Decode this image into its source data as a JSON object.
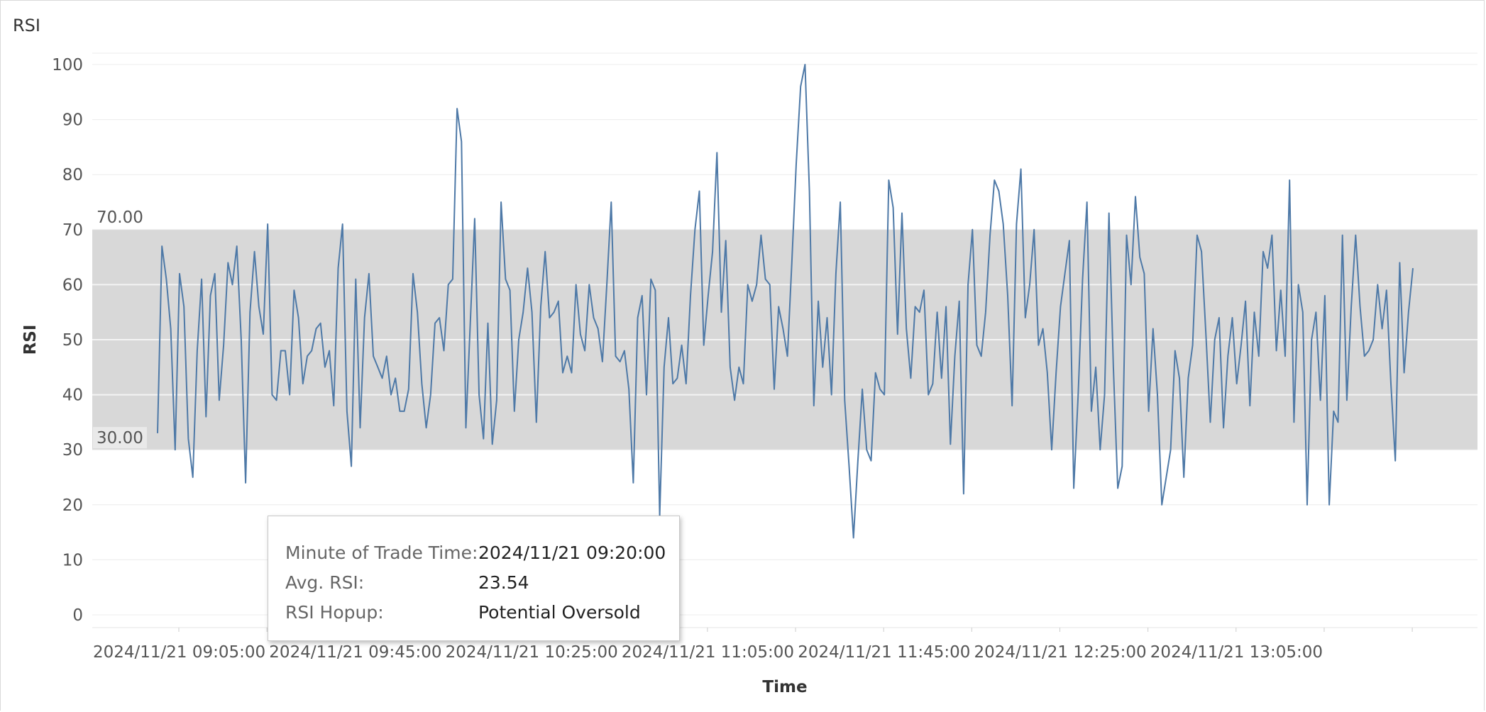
{
  "sheet_title": "RSI",
  "tooltip": {
    "rows": [
      {
        "label": "Minute of Trade Time:",
        "value": "2024/11/21 09:20:00"
      },
      {
        "label": "Avg. RSI:",
        "value": "23.54"
      },
      {
        "label": "RSI Hopup:",
        "value": "Potential Oversold"
      }
    ]
  },
  "chart_data": {
    "type": "line",
    "title": "RSI",
    "xlabel": "Time",
    "ylabel": "RSI",
    "ylim": [
      0,
      100
    ],
    "yticks": [
      0,
      10,
      20,
      30,
      40,
      50,
      60,
      70,
      80,
      90,
      100
    ],
    "xticks": [
      "2024/11/21 09:05:00",
      "2024/11/21 09:45:00",
      "2024/11/21 10:25:00",
      "2024/11/21 11:05:00",
      "2024/11/21 11:45:00",
      "2024/11/21 12:25:00",
      "2024/11/21 13:05:00"
    ],
    "reference_band": {
      "low": 30,
      "high": 70,
      "low_label": "30.00",
      "high_label": "70.00",
      "color": "#d8d8d8"
    },
    "line_color": "#4e79a7",
    "grid": true,
    "x_start": "2024/11/21 08:50:00",
    "x_end": "2024/11/21 13:50:00",
    "series": [
      {
        "values": [
          33,
          67,
          61,
          52,
          30,
          62,
          56,
          32,
          25,
          48,
          61,
          36,
          58,
          62,
          39,
          49,
          64,
          60,
          67,
          50,
          24,
          55,
          66,
          56,
          51,
          71,
          40,
          39,
          48,
          48,
          40,
          59,
          54,
          42,
          47,
          48,
          52,
          53,
          45,
          48,
          38,
          63,
          71,
          37,
          27,
          61,
          34,
          54,
          62,
          47,
          45,
          43,
          47,
          40,
          43,
          37,
          37,
          41,
          62,
          55,
          42,
          34,
          40,
          53,
          54,
          48,
          60,
          61,
          92,
          86,
          34,
          53,
          72,
          40,
          32,
          53,
          31,
          39,
          75,
          61,
          59,
          37,
          50,
          55,
          63,
          55,
          35,
          56,
          66,
          54,
          55,
          57,
          44,
          47,
          44,
          60,
          51,
          48,
          60,
          54,
          52,
          46,
          60,
          75,
          47,
          46,
          48,
          41,
          24,
          54,
          58,
          40,
          61,
          59,
          18,
          45,
          54,
          42,
          43,
          49,
          42,
          58,
          70,
          77,
          49,
          58,
          66,
          84,
          55,
          68,
          45,
          39,
          45,
          42,
          60,
          57,
          60,
          69,
          61,
          60,
          41,
          56,
          52,
          47,
          64,
          82,
          96,
          100,
          77,
          38,
          57,
          45,
          54,
          40,
          62,
          75,
          39,
          27,
          14,
          28,
          41,
          30,
          28,
          44,
          41,
          40,
          79,
          74,
          51,
          73,
          52,
          43,
          56,
          55,
          59,
          40,
          42,
          55,
          43,
          56,
          31,
          47,
          57,
          22,
          60,
          70,
          49,
          47,
          55,
          69,
          79,
          77,
          71,
          58,
          38,
          71,
          81,
          54,
          60,
          70,
          49,
          52,
          44,
          30,
          44,
          56,
          62,
          68,
          23,
          40,
          61,
          75,
          37,
          45,
          30,
          40,
          73,
          45,
          23,
          27,
          69,
          60,
          76,
          65,
          62,
          37,
          52,
          40,
          20,
          25,
          30,
          48,
          43,
          25,
          43,
          49,
          69,
          66,
          51,
          35,
          50,
          54,
          34,
          47,
          54,
          42,
          49,
          57,
          38,
          55,
          47,
          66,
          63,
          69,
          48,
          59,
          47,
          79,
          35,
          60,
          55,
          20,
          50,
          55,
          39,
          58,
          20,
          37,
          35,
          69,
          39,
          56,
          69,
          56,
          47,
          48,
          50,
          60,
          52,
          59,
          42,
          28,
          64,
          44,
          55,
          63
        ]
      }
    ]
  }
}
